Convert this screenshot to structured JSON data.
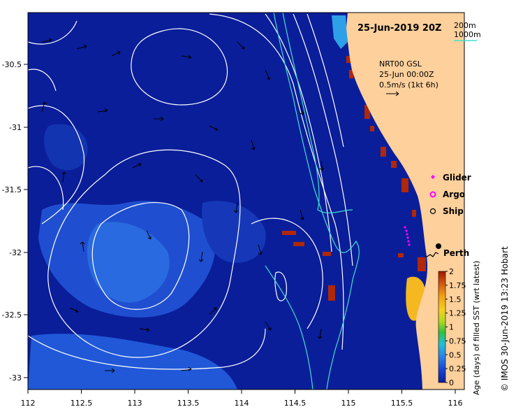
{
  "map": {
    "title": "25-Jun-2019 20Z",
    "product": "NRT00 GSL",
    "product_date": "25-Jun 00:00Z",
    "vector_scale": "0.5m/s (1kt 6h)",
    "isobaths": [
      {
        "label": "200m",
        "color": "#ffffff"
      },
      {
        "label": "1000m",
        "color": "#40e0d0"
      }
    ],
    "place": "Perth",
    "x_ticks": [
      "112",
      "112.5",
      "113",
      "113.5",
      "114",
      "114.5",
      "115",
      "115.5",
      "116"
    ],
    "y_ticks": [
      "-30.5",
      "-31",
      "-31.5",
      "-32",
      "-32.5",
      "-33"
    ],
    "legend": [
      {
        "label": "Glider",
        "color": "#ff00ff"
      },
      {
        "label": "Argo",
        "color": "#ff00ff"
      },
      {
        "label": "Ship",
        "color": "#000000"
      }
    ],
    "colorbar": {
      "ticks": [
        "2",
        "1.75",
        "1.5",
        "1.25",
        "1",
        "0.75",
        "0.5",
        "0.25",
        "0"
      ],
      "label": "Age (days) of filled SST (wrt latest)"
    },
    "credit": "© IMOS 30-Jun-2019 13:23 Hobart",
    "colors": {
      "ocean": "#0a1e9a",
      "land": "#fdd09c",
      "isobath_200": "#ffffff",
      "isobath_1000": "#40e0d0"
    }
  }
}
